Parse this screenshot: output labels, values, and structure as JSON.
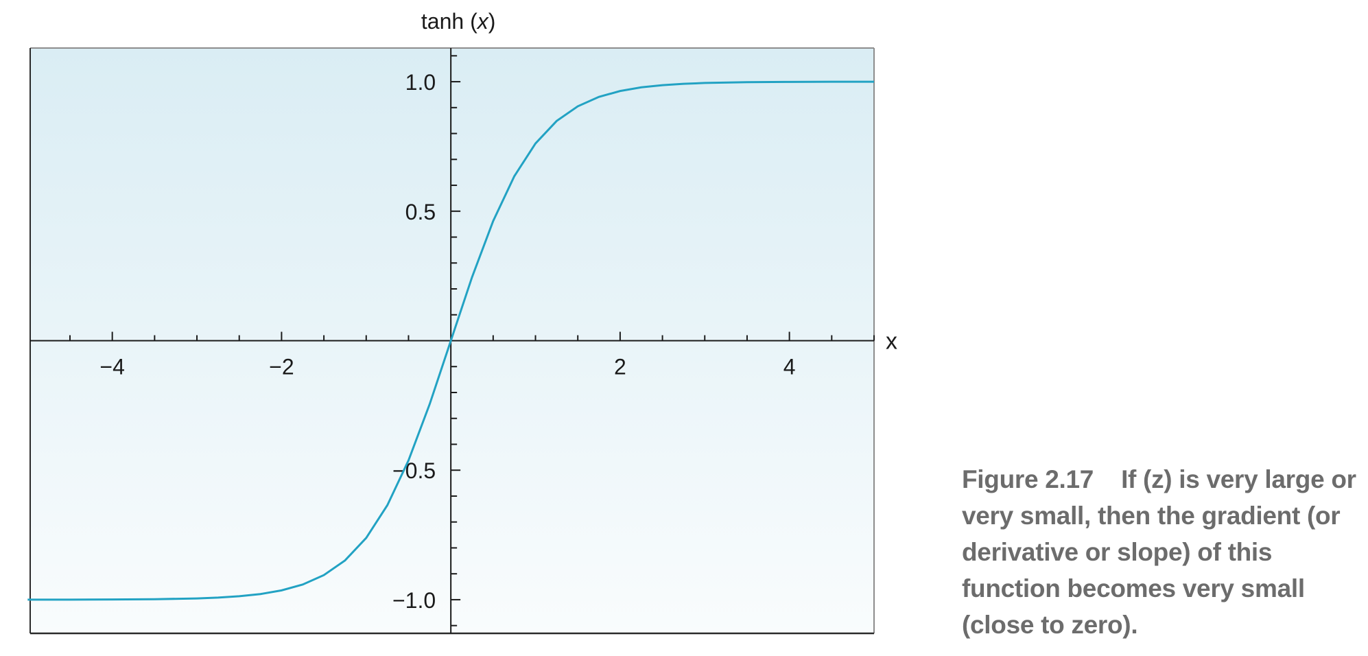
{
  "caption": {
    "label": "Figure 2.17",
    "text": "If (z) is very large or very small, then the gradient (or derivative or slope) of this function becomes very small (close to zero)."
  },
  "chart_data": {
    "type": "line",
    "title_prefix": "tanh (",
    "title_var": "x",
    "title_suffix": ")",
    "xlabel": "x",
    "ylabel": "",
    "xlim": [
      -4.97,
      5.0
    ],
    "ylim": [
      -1.13,
      1.13
    ],
    "x_ticks": [
      -4,
      -2,
      2,
      4
    ],
    "x_tick_labels": [
      "−4",
      "−2",
      "2",
      "4"
    ],
    "x_minor_step": 0.5,
    "y_ticks": [
      1.0,
      0.5,
      -0.5,
      -1.0
    ],
    "y_tick_labels": [
      "1.0",
      "0.5",
      "−0.5",
      "−1.0"
    ],
    "y_minor_step": 0.1,
    "grid": false,
    "background_top": "#daedf4",
    "background_bottom": "#f9fcfd",
    "line_color": "#22a2c3",
    "series": [
      {
        "x": [
          -5.0,
          -4.5,
          -4.0,
          -3.5,
          -3.0,
          -2.75,
          -2.5,
          -2.25,
          -2.0,
          -1.75,
          -1.5,
          -1.25,
          -1.0,
          -0.75,
          -0.5,
          -0.25,
          0.0,
          0.25,
          0.5,
          0.75,
          1.0,
          1.25,
          1.5,
          1.75,
          2.0,
          2.25,
          2.5,
          2.75,
          3.0,
          3.5,
          4.0,
          4.5,
          5.0
        ],
        "y": [
          -0.9999,
          -0.9998,
          -0.9993,
          -0.9982,
          -0.9951,
          -0.9918,
          -0.9866,
          -0.9783,
          -0.964,
          -0.9414,
          -0.9051,
          -0.8483,
          -0.7616,
          -0.6351,
          -0.4621,
          -0.2449,
          0.0,
          0.2449,
          0.4621,
          0.6351,
          0.7616,
          0.8483,
          0.9051,
          0.9414,
          0.964,
          0.9783,
          0.9866,
          0.9918,
          0.9951,
          0.9982,
          0.9993,
          0.9998,
          0.9999
        ]
      }
    ]
  }
}
